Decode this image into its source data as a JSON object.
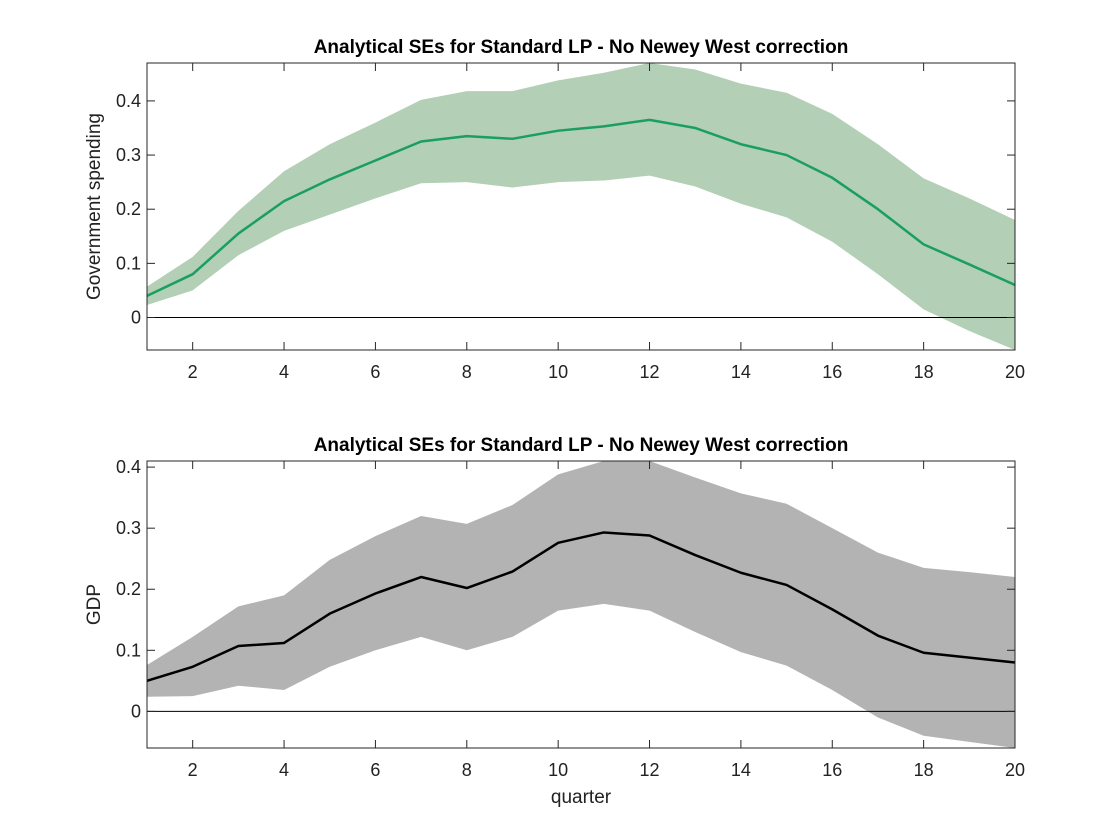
{
  "chart_data": [
    {
      "type": "line",
      "title": "Analytical SEs for Standard LP - No Newey West correction",
      "xlabel": "",
      "ylabel": "Government spending",
      "x": [
        1,
        2,
        3,
        4,
        5,
        6,
        7,
        8,
        9,
        10,
        11,
        12,
        13,
        14,
        15,
        16,
        17,
        18,
        19,
        20
      ],
      "xlim": [
        1,
        20
      ],
      "ylim": [
        -0.06,
        0.47
      ],
      "xticks": [
        2,
        4,
        6,
        8,
        10,
        12,
        14,
        16,
        18,
        20
      ],
      "yticks": [
        0,
        0.1,
        0.2,
        0.3,
        0.4
      ],
      "ytick_labels": [
        "0",
        "0.1",
        "0.2",
        "0.3",
        "0.4"
      ],
      "reference_line_y": 0,
      "grid": false,
      "line_color": "#1a9e62",
      "band_color": "#b3cfb5",
      "series": [
        {
          "values": [
            0.04,
            0.08,
            0.155,
            0.215,
            0.255,
            0.29,
            0.325,
            0.335,
            0.33,
            0.345,
            0.353,
            0.365,
            0.35,
            0.32,
            0.3,
            0.258,
            0.2,
            0.135,
            0.098,
            0.06
          ],
          "lower": [
            0.023,
            0.05,
            0.115,
            0.16,
            0.19,
            0.22,
            0.248,
            0.25,
            0.24,
            0.25,
            0.253,
            0.262,
            0.242,
            0.21,
            0.185,
            0.14,
            0.08,
            0.015,
            -0.025,
            -0.06
          ],
          "upper": [
            0.057,
            0.112,
            0.197,
            0.27,
            0.32,
            0.36,
            0.402,
            0.418,
            0.418,
            0.438,
            0.452,
            0.47,
            0.458,
            0.432,
            0.415,
            0.376,
            0.32,
            0.257,
            0.22,
            0.18
          ]
        }
      ]
    },
    {
      "type": "line",
      "title": "Analytical SEs for Standard LP - No Newey West correction",
      "xlabel": "quarter",
      "ylabel": "GDP",
      "x": [
        1,
        2,
        3,
        4,
        5,
        6,
        7,
        8,
        9,
        10,
        11,
        12,
        13,
        14,
        15,
        16,
        17,
        18,
        19,
        20
      ],
      "xlim": [
        1,
        20
      ],
      "ylim": [
        -0.06,
        0.41
      ],
      "xticks": [
        2,
        4,
        6,
        8,
        10,
        12,
        14,
        16,
        18,
        20
      ],
      "yticks": [
        0,
        0.1,
        0.2,
        0.3,
        0.4
      ],
      "ytick_labels": [
        "0",
        "0.1",
        "0.2",
        "0.3",
        "0.4"
      ],
      "reference_line_y": 0,
      "grid": false,
      "line_color": "#000000",
      "band_color": "#b3b3b3",
      "series": [
        {
          "values": [
            0.05,
            0.073,
            0.107,
            0.112,
            0.16,
            0.193,
            0.22,
            0.202,
            0.229,
            0.276,
            0.293,
            0.288,
            0.256,
            0.227,
            0.207,
            0.167,
            0.124,
            0.096,
            0.088,
            0.08
          ],
          "lower": [
            0.024,
            0.025,
            0.042,
            0.035,
            0.073,
            0.1,
            0.122,
            0.1,
            0.122,
            0.165,
            0.176,
            0.165,
            0.13,
            0.097,
            0.075,
            0.035,
            -0.01,
            -0.04,
            -0.05,
            -0.06
          ],
          "upper": [
            0.076,
            0.122,
            0.172,
            0.19,
            0.248,
            0.287,
            0.32,
            0.307,
            0.338,
            0.388,
            0.41,
            0.41,
            0.383,
            0.357,
            0.34,
            0.3,
            0.26,
            0.235,
            0.228,
            0.22
          ]
        }
      ]
    }
  ]
}
